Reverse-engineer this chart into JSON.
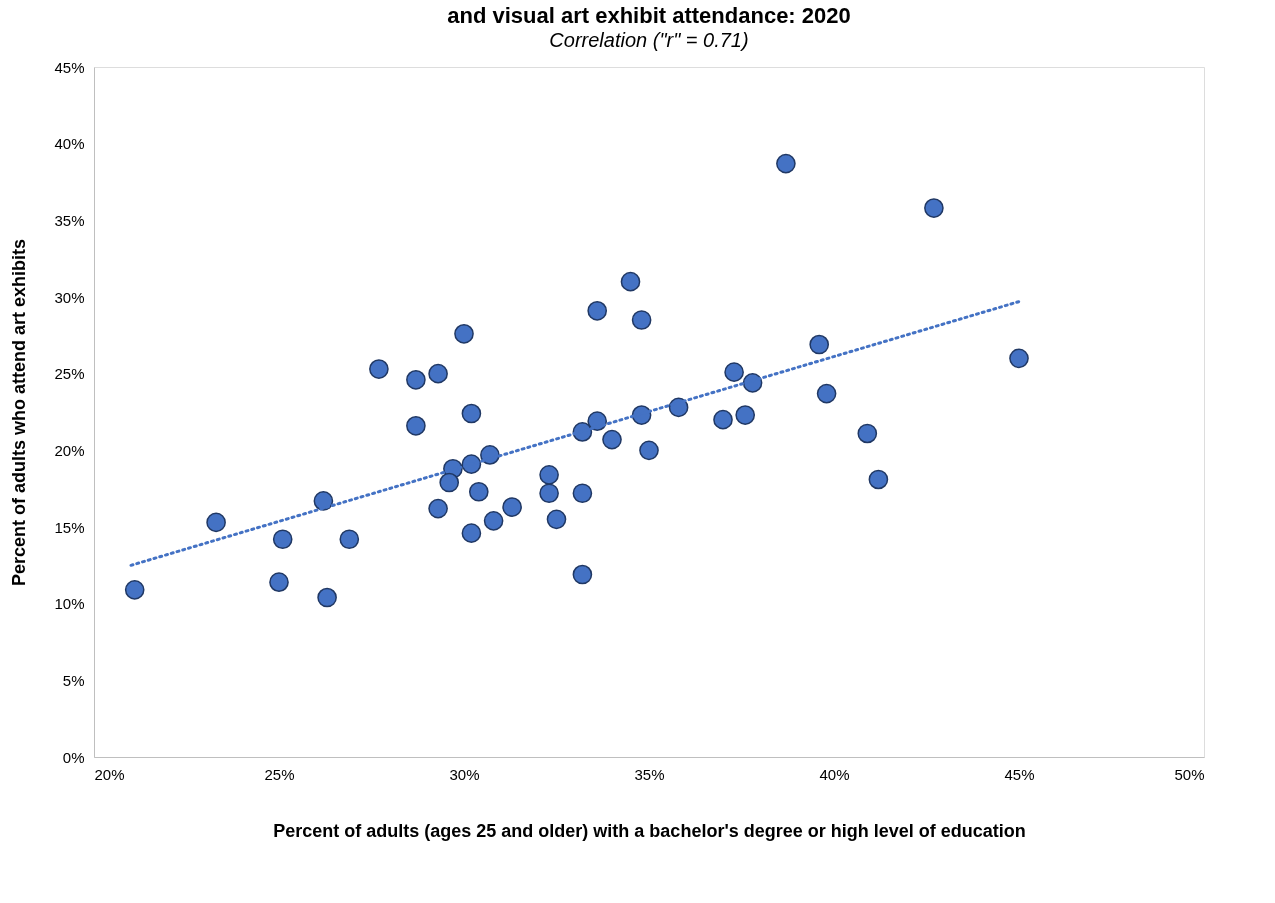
{
  "chart_data": {
    "type": "scatter",
    "title": "and visual art exhibit attendance: 2020",
    "subtitle": "Correlation (\"r\" = 0.71)",
    "xlabel": "Percent of adults (ages 25 and older) with a bachelor's degree or high level of education",
    "ylabel": "Percent of adults who attend art exhibits",
    "xlim": [
      20,
      50
    ],
    "xticks": [
      {
        "value": 20,
        "label": "20%"
      },
      {
        "value": 25,
        "label": "25%"
      },
      {
        "value": 30,
        "label": "30%"
      },
      {
        "value": 35,
        "label": "35%"
      },
      {
        "value": 40,
        "label": "40%"
      },
      {
        "value": 45,
        "label": "45%"
      },
      {
        "value": 50,
        "label": "50%"
      }
    ],
    "ylim": [
      0,
      45
    ],
    "yticks": [
      {
        "value": 0,
        "label": "0%"
      },
      {
        "value": 5,
        "label": "5%"
      },
      {
        "value": 10,
        "label": "10%"
      },
      {
        "value": 15,
        "label": "15%"
      },
      {
        "value": 20,
        "label": "20%"
      },
      {
        "value": 25,
        "label": "25%"
      },
      {
        "value": 30,
        "label": "30%"
      },
      {
        "value": 35,
        "label": "35%"
      },
      {
        "value": 40,
        "label": "40%"
      },
      {
        "value": 45,
        "label": "45%"
      }
    ],
    "grid": false,
    "series": [
      {
        "color": "#4472c4",
        "marker": "circle",
        "x": [
          21.1,
          23.3,
          25.0,
          25.1,
          26.2,
          26.9,
          26.3,
          28.7,
          30.2,
          29.7,
          29.6,
          30.2,
          30.7,
          30.4,
          29.3,
          30.8,
          30.2,
          31.3,
          32.3,
          32.3,
          32.5,
          33.2,
          33.2,
          33.2,
          33.6,
          34.0,
          34.8,
          35.0,
          34.5,
          33.6,
          34.8,
          30.0,
          27.7,
          28.7,
          29.3,
          38.7,
          42.7,
          39.6,
          45.0,
          37.3,
          37.8,
          39.8,
          35.8,
          37.0,
          37.6,
          40.9,
          41.2
        ],
        "values": [
          10.9,
          15.3,
          11.4,
          14.2,
          16.7,
          14.2,
          10.4,
          21.6,
          22.4,
          18.8,
          17.9,
          19.1,
          19.7,
          17.3,
          16.2,
          15.4,
          14.6,
          16.3,
          18.4,
          17.2,
          15.5,
          17.2,
          11.9,
          21.2,
          21.9,
          20.7,
          22.3,
          20.0,
          31.0,
          29.1,
          28.5,
          27.6,
          25.3,
          24.6,
          25.0,
          38.7,
          35.8,
          26.9,
          26.0,
          25.1,
          24.4,
          23.7,
          22.8,
          22.0,
          22.3,
          21.1,
          18.1
        ]
      },
      {
        "type": "line",
        "color": "#4472c4",
        "line_style": "dotted",
        "marker": "none",
        "x": [
          21.0,
          45.0
        ],
        "values": [
          12.5,
          29.7
        ]
      }
    ]
  }
}
